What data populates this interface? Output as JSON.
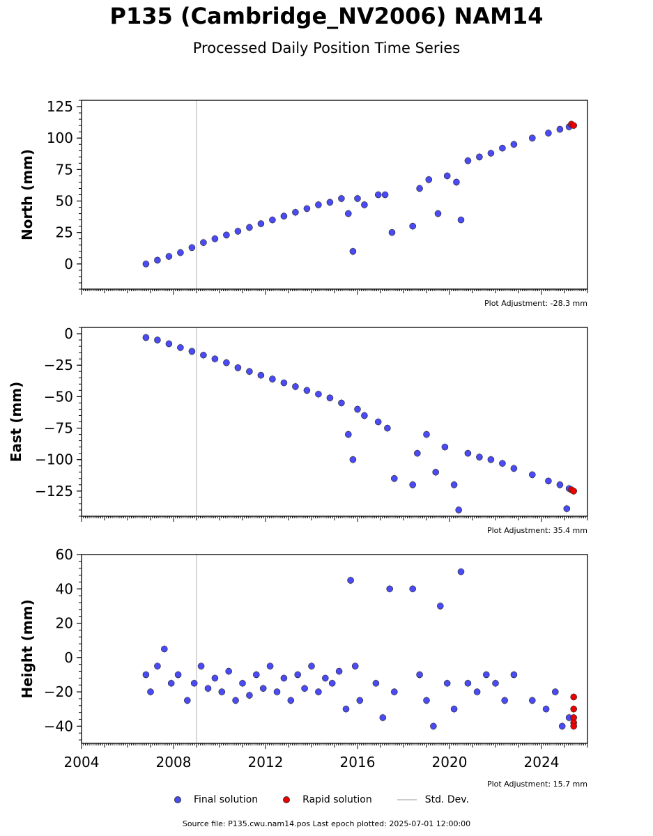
{
  "title": "P135 (Cambridge_NV2006) NAM14",
  "subtitle": "Processed Daily Position Time Series",
  "legend": {
    "final": "Final solution",
    "rapid": "Rapid solution",
    "stddev": "Std. Dev."
  },
  "source": "Source file: P135.cwu.nam14.pos  Last epoch plotted: 2025-07-01 12:00:00",
  "colors": {
    "final": "#4b4bf5",
    "rapid": "#ee0000",
    "stddev": "#999999",
    "vline": "#cccccc"
  },
  "chart_data": [
    {
      "type": "scatter",
      "ylabel": "North (mm)",
      "adjustment": "Plot Adjustment: -28.3 mm",
      "xlim": [
        2004,
        2026
      ],
      "ylim": [
        -20,
        130
      ],
      "yticks": [
        0,
        25,
        50,
        75,
        100,
        125
      ],
      "vline": 2009.0,
      "series": [
        {
          "name": "Final solution",
          "points": [
            [
              2006.8,
              0
            ],
            [
              2007.3,
              3
            ],
            [
              2007.8,
              6
            ],
            [
              2008.3,
              9
            ],
            [
              2008.8,
              13
            ],
            [
              2009.3,
              17
            ],
            [
              2009.8,
              20
            ],
            [
              2010.3,
              23
            ],
            [
              2010.8,
              26
            ],
            [
              2011.3,
              29
            ],
            [
              2011.8,
              32
            ],
            [
              2012.3,
              35
            ],
            [
              2012.8,
              38
            ],
            [
              2013.3,
              41
            ],
            [
              2013.8,
              44
            ],
            [
              2014.3,
              47
            ],
            [
              2014.8,
              49
            ],
            [
              2015.3,
              52
            ],
            [
              2015.6,
              40
            ],
            [
              2015.8,
              10
            ],
            [
              2016.0,
              52
            ],
            [
              2016.3,
              47
            ],
            [
              2016.9,
              55
            ],
            [
              2017.2,
              55
            ],
            [
              2017.5,
              25
            ],
            [
              2018.4,
              30
            ],
            [
              2018.7,
              60
            ],
            [
              2019.1,
              67
            ],
            [
              2019.5,
              40
            ],
            [
              2019.9,
              70
            ],
            [
              2020.3,
              65
            ],
            [
              2020.5,
              35
            ],
            [
              2020.8,
              82
            ],
            [
              2021.3,
              85
            ],
            [
              2021.8,
              88
            ],
            [
              2022.3,
              92
            ],
            [
              2022.8,
              95
            ],
            [
              2023.6,
              100
            ],
            [
              2024.3,
              104
            ],
            [
              2024.8,
              107
            ],
            [
              2025.2,
              109
            ]
          ]
        },
        {
          "name": "Rapid solution",
          "points": [
            [
              2025.3,
              111
            ],
            [
              2025.4,
              110
            ]
          ]
        }
      ]
    },
    {
      "type": "scatter",
      "ylabel": "East (mm)",
      "adjustment": "Plot Adjustment: 35.4 mm",
      "xlim": [
        2004,
        2026
      ],
      "ylim": [
        -145,
        5
      ],
      "yticks": [
        0,
        -25,
        -50,
        -75,
        -100,
        -125
      ],
      "vline": 2009.0,
      "series": [
        {
          "name": "Final solution",
          "points": [
            [
              2006.8,
              -3
            ],
            [
              2007.3,
              -5
            ],
            [
              2007.8,
              -8
            ],
            [
              2008.3,
              -11
            ],
            [
              2008.8,
              -14
            ],
            [
              2009.3,
              -17
            ],
            [
              2009.8,
              -20
            ],
            [
              2010.3,
              -23
            ],
            [
              2010.8,
              -27
            ],
            [
              2011.3,
              -30
            ],
            [
              2011.8,
              -33
            ],
            [
              2012.3,
              -36
            ],
            [
              2012.8,
              -39
            ],
            [
              2013.3,
              -42
            ],
            [
              2013.8,
              -45
            ],
            [
              2014.3,
              -48
            ],
            [
              2014.8,
              -51
            ],
            [
              2015.3,
              -55
            ],
            [
              2015.6,
              -80
            ],
            [
              2015.8,
              -100
            ],
            [
              2016.0,
              -60
            ],
            [
              2016.3,
              -65
            ],
            [
              2016.9,
              -70
            ],
            [
              2017.3,
              -75
            ],
            [
              2017.6,
              -115
            ],
            [
              2018.4,
              -120
            ],
            [
              2018.6,
              -95
            ],
            [
              2019.0,
              -80
            ],
            [
              2019.4,
              -110
            ],
            [
              2019.8,
              -90
            ],
            [
              2020.2,
              -120
            ],
            [
              2020.4,
              -140
            ],
            [
              2020.8,
              -95
            ],
            [
              2021.3,
              -98
            ],
            [
              2021.8,
              -100
            ],
            [
              2022.3,
              -103
            ],
            [
              2022.8,
              -107
            ],
            [
              2023.6,
              -112
            ],
            [
              2024.3,
              -117
            ],
            [
              2024.8,
              -120
            ],
            [
              2025.2,
              -123
            ],
            [
              2025.1,
              -139
            ]
          ]
        },
        {
          "name": "Rapid solution",
          "points": [
            [
              2025.3,
              -124
            ],
            [
              2025.4,
              -125
            ]
          ]
        }
      ]
    },
    {
      "type": "scatter",
      "ylabel": "Height (mm)",
      "adjustment": "Plot Adjustment: 15.7 mm",
      "xlim": [
        2004,
        2026
      ],
      "ylim": [
        -50,
        60
      ],
      "yticks": [
        -40,
        -20,
        0,
        20,
        40,
        60
      ],
      "xticks": [
        2004,
        2008,
        2012,
        2016,
        2020,
        2024
      ],
      "vline": 2009.0,
      "series": [
        {
          "name": "Final solution",
          "points": [
            [
              2006.8,
              -10
            ],
            [
              2007.0,
              -20
            ],
            [
              2007.3,
              -5
            ],
            [
              2007.6,
              5
            ],
            [
              2007.9,
              -15
            ],
            [
              2008.2,
              -10
            ],
            [
              2008.6,
              -25
            ],
            [
              2008.9,
              -15
            ],
            [
              2009.2,
              -5
            ],
            [
              2009.5,
              -18
            ],
            [
              2009.8,
              -12
            ],
            [
              2010.1,
              -20
            ],
            [
              2010.4,
              -8
            ],
            [
              2010.7,
              -25
            ],
            [
              2011.0,
              -15
            ],
            [
              2011.3,
              -22
            ],
            [
              2011.6,
              -10
            ],
            [
              2011.9,
              -18
            ],
            [
              2012.2,
              -5
            ],
            [
              2012.5,
              -20
            ],
            [
              2012.8,
              -12
            ],
            [
              2013.1,
              -25
            ],
            [
              2013.4,
              -10
            ],
            [
              2013.7,
              -18
            ],
            [
              2014.0,
              -5
            ],
            [
              2014.3,
              -20
            ],
            [
              2014.6,
              -12
            ],
            [
              2014.9,
              -15
            ],
            [
              2015.2,
              -8
            ],
            [
              2015.5,
              -30
            ],
            [
              2015.7,
              45
            ],
            [
              2015.9,
              -5
            ],
            [
              2016.1,
              -25
            ],
            [
              2016.8,
              -15
            ],
            [
              2017.1,
              -35
            ],
            [
              2017.4,
              40
            ],
            [
              2017.6,
              -20
            ],
            [
              2018.4,
              40
            ],
            [
              2018.7,
              -10
            ],
            [
              2019.0,
              -25
            ],
            [
              2019.3,
              -40
            ],
            [
              2019.6,
              30
            ],
            [
              2019.9,
              -15
            ],
            [
              2020.2,
              -30
            ],
            [
              2020.5,
              50
            ],
            [
              2020.8,
              -15
            ],
            [
              2021.2,
              -20
            ],
            [
              2021.6,
              -10
            ],
            [
              2022.0,
              -15
            ],
            [
              2022.4,
              -25
            ],
            [
              2022.8,
              -10
            ],
            [
              2023.6,
              -25
            ],
            [
              2024.2,
              -30
            ],
            [
              2024.6,
              -20
            ],
            [
              2024.9,
              -40
            ],
            [
              2025.2,
              -35
            ]
          ]
        },
        {
          "name": "Rapid solution",
          "points": [
            [
              2025.4,
              -23
            ],
            [
              2025.4,
              -30
            ],
            [
              2025.4,
              -35
            ],
            [
              2025.4,
              -38
            ],
            [
              2025.4,
              -40
            ]
          ]
        }
      ]
    }
  ]
}
